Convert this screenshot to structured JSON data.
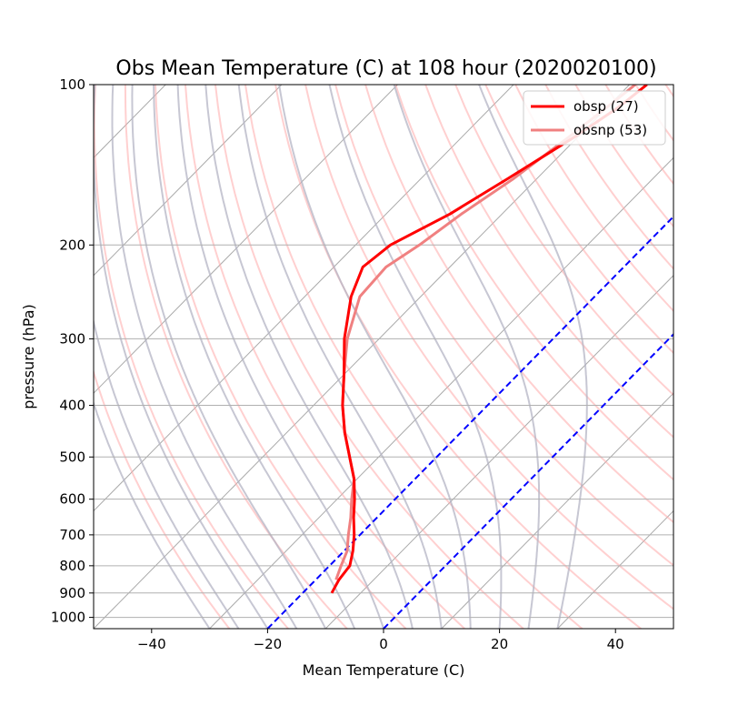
{
  "chart_data": {
    "type": "line",
    "title": "Obs Mean Temperature (C) at 108 hour (2020020100)",
    "xlabel": "Mean Temperature (C)",
    "ylabel": "pressure (hPa)",
    "xlim": [
      -50,
      50
    ],
    "ylim": [
      1050,
      100
    ],
    "yscale": "log",
    "x_ticks": [
      -40,
      -20,
      0,
      20,
      40
    ],
    "x_tick_labels": [
      "−40",
      "−20",
      "0",
      "20",
      "40"
    ],
    "y_ticks": [
      1000,
      900,
      800,
      700,
      600,
      500,
      400,
      300,
      200,
      100
    ],
    "y_tick_labels": [
      "1000",
      "900",
      "800",
      "700",
      "600",
      "500",
      "400",
      "300",
      "200",
      "100"
    ],
    "grid": "horizontal at pressure ticks",
    "legend_position": "top-right",
    "series": [
      {
        "name": "obsp (27)",
        "color": "#ff0000",
        "pressure": [
          900,
          850,
          800,
          750,
          700,
          650,
          600,
          550,
          500,
          450,
          400,
          350,
          300,
          250,
          220,
          200,
          175,
          150,
          125,
          110,
          100
        ],
        "temperature": [
          -15,
          -16,
          -16.5,
          -18.5,
          -21,
          -24,
          -27,
          -30.5,
          -35,
          -40,
          -45,
          -50,
          -56,
          -62,
          -65,
          -64,
          -59,
          -55,
          -50.5,
          -48,
          -47
        ]
      },
      {
        "name": "obsnp (53)",
        "color": "#f08080",
        "pressure": [
          850,
          800,
          750,
          700,
          650,
          600,
          550,
          500,
          450,
          400,
          350,
          300,
          250,
          220,
          200,
          175,
          150,
          125,
          110,
          100
        ],
        "temperature": [
          -16.5,
          -18,
          -19.5,
          -22,
          -24.5,
          -27.5,
          -30.5,
          -35,
          -40,
          -45,
          -50,
          -55.5,
          -60.5,
          -61,
          -59,
          -57,
          -54,
          -51.5,
          -50,
          -49
        ]
      }
    ],
    "reference_lines": [
      {
        "kind": "isotherm",
        "style": "blue-dashed",
        "color": "#0000ff",
        "temperature": -20
      },
      {
        "kind": "isotherm",
        "style": "blue-dashed",
        "color": "#0000ff",
        "temperature": 0
      }
    ],
    "background_lines": {
      "isotherm_color": "#aaaaaa",
      "dry_adiabat_color": "#ffaaaa",
      "moist_adiabat_color": "#b4b4c4"
    }
  }
}
